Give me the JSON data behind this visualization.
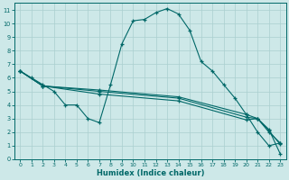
{
  "bg_color": "#cde8e8",
  "grid_color": "#aacfcf",
  "line_color": "#006868",
  "xlabel": "Humidex (Indice chaleur)",
  "xlim": [
    -0.5,
    23.5
  ],
  "ylim": [
    0,
    11.5
  ],
  "xticks": [
    0,
    1,
    2,
    3,
    4,
    5,
    6,
    7,
    8,
    9,
    10,
    11,
    12,
    13,
    14,
    15,
    16,
    17,
    18,
    19,
    20,
    21,
    22,
    23
  ],
  "yticks": [
    0,
    1,
    2,
    3,
    4,
    5,
    6,
    7,
    8,
    9,
    10,
    11
  ],
  "series": [
    {
      "x": [
        0,
        1,
        2,
        3,
        4,
        5,
        6,
        7,
        8,
        9,
        10,
        11,
        12,
        13,
        14,
        15,
        16,
        17,
        18,
        19,
        20,
        21,
        22,
        23
      ],
      "y": [
        6.5,
        6.0,
        5.5,
        5.0,
        4.0,
        4.0,
        3.0,
        2.7,
        5.5,
        8.5,
        10.2,
        10.3,
        10.8,
        11.1,
        10.7,
        9.5,
        7.2,
        6.5,
        5.5,
        4.5,
        3.3,
        2.0,
        1.0,
        1.2
      ]
    },
    {
      "x": [
        0,
        2,
        7,
        14,
        20,
        21,
        22,
        23
      ],
      "y": [
        6.5,
        5.4,
        5.1,
        4.6,
        3.3,
        3.0,
        2.2,
        0.4
      ]
    },
    {
      "x": [
        0,
        2,
        7,
        14,
        20,
        21,
        22,
        23
      ],
      "y": [
        6.5,
        5.4,
        5.0,
        4.5,
        3.1,
        3.0,
        2.1,
        1.1
      ]
    },
    {
      "x": [
        0,
        2,
        7,
        14,
        20,
        21,
        22,
        23
      ],
      "y": [
        6.5,
        5.4,
        4.8,
        4.3,
        2.9,
        3.0,
        2.0,
        1.2
      ]
    }
  ]
}
